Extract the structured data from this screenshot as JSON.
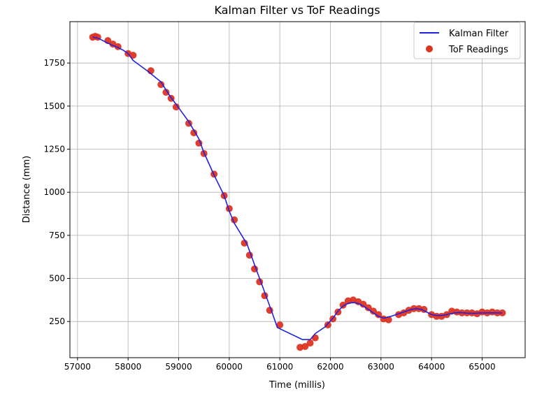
{
  "chart_data": {
    "type": "scatter",
    "title": "Kalman Filter vs ToF Readings",
    "xlabel": "Time (millis)",
    "ylabel": "Distance (mm)",
    "xlim": [
      56850,
      65850
    ],
    "ylim": [
      40,
      1990
    ],
    "x_ticks": [
      57000,
      58000,
      59000,
      60000,
      61000,
      62000,
      63000,
      64000,
      65000
    ],
    "y_ticks": [
      250,
      500,
      750,
      1000,
      1250,
      1500,
      1750
    ],
    "grid": true,
    "legend_position": "top-right",
    "series": [
      {
        "name": "Kalman Filter",
        "kind": "line",
        "color": "#2222dd",
        "x": [
          57300,
          57400,
          57500,
          57600,
          57700,
          57800,
          57900,
          58000,
          58100,
          58400,
          58650,
          58800,
          58900,
          59000,
          59200,
          59400,
          59500,
          59700,
          59900,
          60000,
          60100,
          60350,
          60450,
          60550,
          60650,
          60750,
          60850,
          60950,
          61450,
          61600,
          61700,
          61900,
          62050,
          62150,
          62250,
          62350,
          62450,
          62550,
          62650,
          62750,
          62850,
          62950,
          63050,
          63200,
          63400,
          63500,
          63600,
          63700,
          63800,
          63900,
          64000,
          64100,
          64200,
          64300,
          64450,
          64550,
          64650,
          64750,
          64850,
          64950,
          65050,
          65150,
          65250,
          65400
        ],
        "y": [
          1900,
          1895,
          1880,
          1865,
          1852,
          1840,
          1825,
          1805,
          1765,
          1700,
          1640,
          1570,
          1530,
          1490,
          1410,
          1310,
          1230,
          1100,
          980,
          890,
          820,
          700,
          620,
          540,
          460,
          380,
          300,
          215,
          145,
          145,
          180,
          220,
          270,
          310,
          340,
          355,
          360,
          355,
          340,
          320,
          300,
          280,
          270,
          280,
          300,
          310,
          320,
          325,
          320,
          305,
          290,
          285,
          285,
          290,
          300,
          302,
          300,
          298,
          298,
          299,
          300,
          300,
          300,
          300
        ]
      },
      {
        "name": "ToF Readings",
        "kind": "scatter",
        "color": "#dd3322",
        "x": [
          57300,
          57350,
          57400,
          57600,
          57700,
          57800,
          58000,
          58100,
          58450,
          58650,
          58750,
          58850,
          58950,
          59200,
          59300,
          59400,
          59500,
          59700,
          59900,
          60000,
          60100,
          60300,
          60400,
          60500,
          60600,
          60700,
          60800,
          61000,
          61400,
          61500,
          61600,
          61700,
          61950,
          62050,
          62150,
          62250,
          62350,
          62450,
          62550,
          62650,
          62750,
          62850,
          62950,
          63050,
          63150,
          63350,
          63450,
          63550,
          63650,
          63750,
          63850,
          64000,
          64100,
          64200,
          64300,
          64400,
          64500,
          64600,
          64700,
          64800,
          64900,
          65000,
          65100,
          65200,
          65300,
          65400
        ],
        "y": [
          1900,
          1905,
          1900,
          1880,
          1860,
          1845,
          1805,
          1795,
          1705,
          1625,
          1580,
          1545,
          1495,
          1400,
          1345,
          1285,
          1225,
          1105,
          980,
          905,
          840,
          705,
          635,
          555,
          480,
          400,
          315,
          230,
          100,
          105,
          125,
          155,
          230,
          265,
          305,
          345,
          370,
          375,
          365,
          350,
          330,
          310,
          290,
          265,
          260,
          290,
          300,
          315,
          325,
          325,
          320,
          290,
          280,
          280,
          290,
          310,
          305,
          300,
          300,
          300,
          295,
          305,
          300,
          305,
          300,
          300
        ]
      }
    ]
  }
}
